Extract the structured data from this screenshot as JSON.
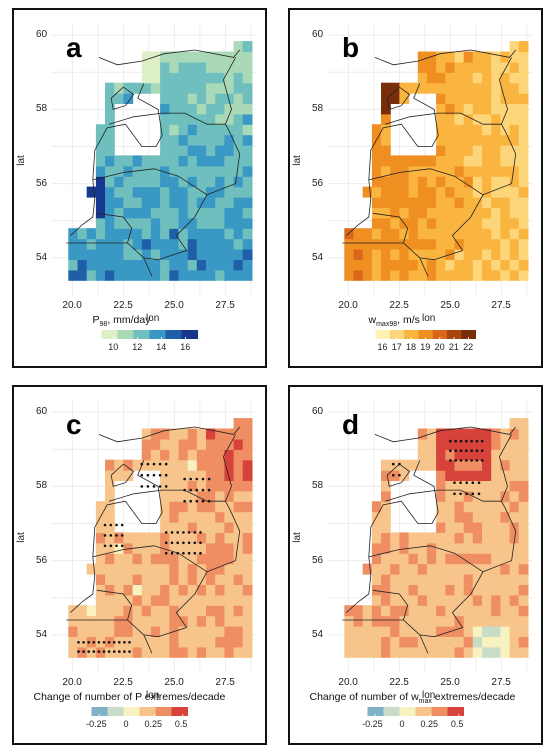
{
  "panels": [
    {
      "id": "a",
      "label": "a",
      "x_ticks": [
        "20.0",
        "22.5",
        "25.0",
        "27.5"
      ],
      "y_ticks": [
        "60",
        "58",
        "56",
        "54"
      ],
      "xlabel": "lon",
      "ylabel": "lat",
      "legend_title_main": "P",
      "legend_title_sub": "98",
      "legend_title_rest": ", mm/day",
      "legend_ticks": [
        "10",
        "12",
        "14",
        "16"
      ],
      "palette": [
        "#dcefc6",
        "#a9d9b6",
        "#6fbfbe",
        "#3a98c4",
        "#1f5fa8",
        "#17378e"
      ]
    },
    {
      "id": "b",
      "label": "b",
      "x_ticks": [
        "20.0",
        "22.5",
        "25.0",
        "27.5"
      ],
      "y_ticks": [
        "60",
        "58",
        "56",
        "54"
      ],
      "xlabel": "lon",
      "ylabel": "lat",
      "legend_title_main": "w",
      "legend_title_sub": "max98",
      "legend_title_rest": ", m/s",
      "legend_ticks": [
        "16",
        "17",
        "18",
        "19",
        "20",
        "21",
        "22"
      ],
      "palette": [
        "#fff1b0",
        "#fdd57a",
        "#f9b53f",
        "#ef8f22",
        "#d9661a",
        "#a84410",
        "#7a2d0a"
      ]
    },
    {
      "id": "c",
      "label": "c",
      "x_ticks": [
        "20.0",
        "22.5",
        "25.0",
        "27.5"
      ],
      "y_ticks": [
        "60",
        "58",
        "56",
        "54"
      ],
      "xlabel": "lon",
      "ylabel": "lat",
      "legend_title_main": "Change of number of P extremes/decade",
      "legend_title_sub": "",
      "legend_title_rest": "",
      "legend_ticks": [
        "-0.25",
        "0",
        "0.25",
        "0.5"
      ],
      "palette": [
        "#7fb2c9",
        "#c9dcc8",
        "#f8f2c0",
        "#f7c48b",
        "#f08e63",
        "#d7433a"
      ]
    },
    {
      "id": "d",
      "label": "d",
      "x_ticks": [
        "20.0",
        "22.5",
        "25.0",
        "27.5"
      ],
      "y_ticks": [
        "60",
        "58",
        "56",
        "54"
      ],
      "xlabel": "lon",
      "ylabel": "lat",
      "legend_title_main": "Change of number of w",
      "legend_title_sub": "max",
      "legend_title_rest": " extremes/decade",
      "legend_ticks": [
        "-0.25",
        "0",
        "0.25",
        "0.5"
      ],
      "palette": [
        "#7fb2c9",
        "#c9dcc8",
        "#f8f2c0",
        "#f7c48b",
        "#f08e63",
        "#d7433a"
      ]
    }
  ]
}
